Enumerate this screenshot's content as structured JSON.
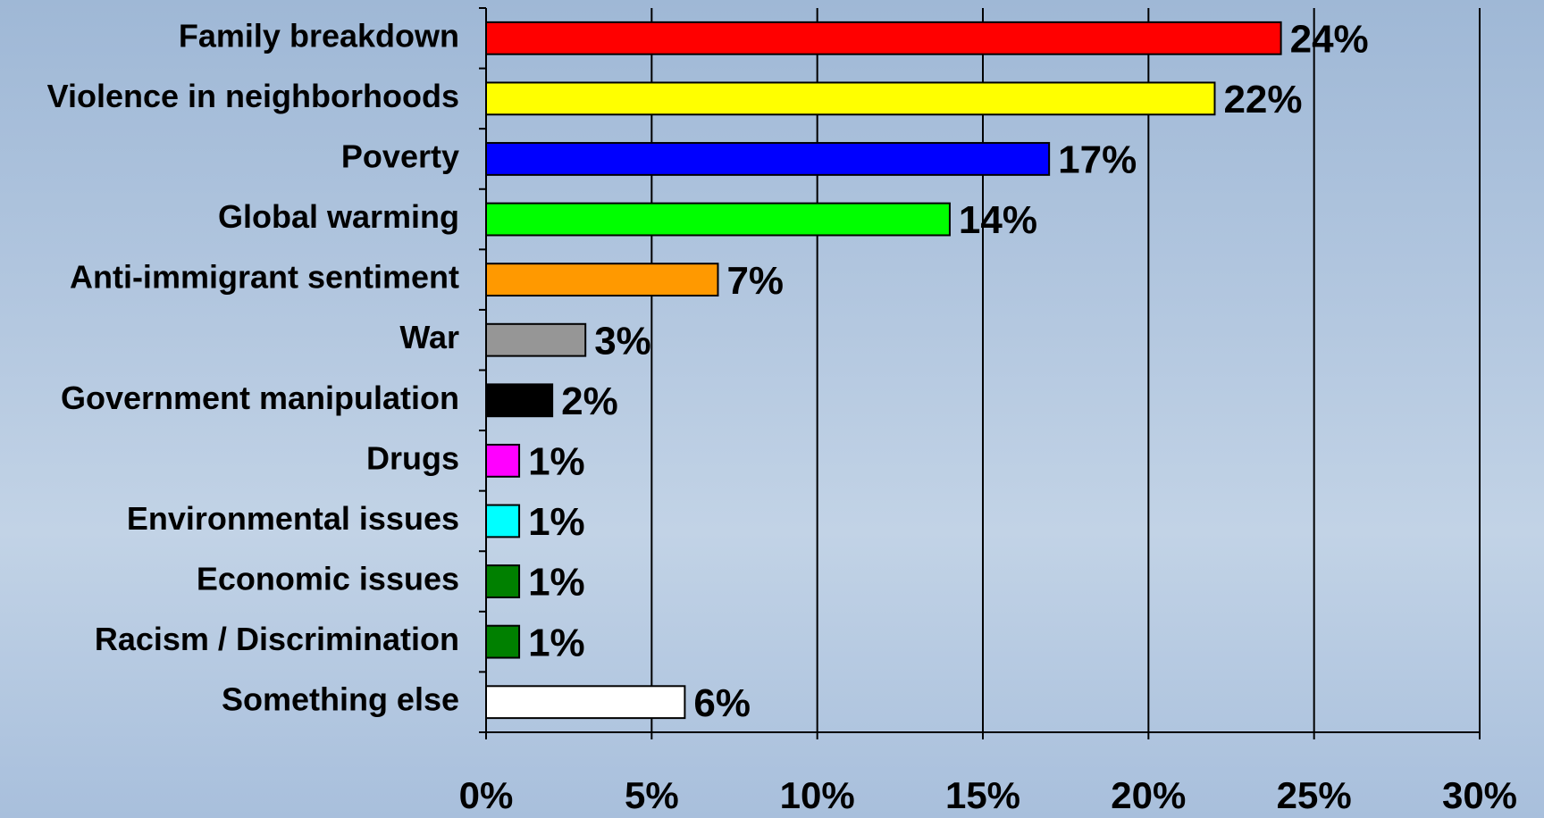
{
  "chart_data": {
    "type": "bar",
    "orientation": "horizontal",
    "categories": [
      "Family breakdown",
      "Violence in neighborhoods",
      "Poverty",
      "Global warming",
      "Anti-immigrant sentiment",
      "War",
      "Government manipulation",
      "Drugs",
      "Environmental issues",
      "Economic issues",
      "Racism / Discrimination",
      "Something else"
    ],
    "values": [
      24,
      22,
      17,
      14,
      7,
      3,
      2,
      1,
      1,
      1,
      1,
      6
    ],
    "value_labels": [
      "24%",
      "22%",
      "17%",
      "14%",
      "7%",
      "3%",
      "2%",
      "1%",
      "1%",
      "1%",
      "1%",
      "6%"
    ],
    "colors": [
      "#ff0000",
      "#ffff00",
      "#0000ff",
      "#00ff00",
      "#ff9900",
      "#969696",
      "#000000",
      "#ff00ff",
      "#00ffff",
      "#008000",
      "#008000",
      "#ffffff"
    ],
    "xlim": [
      0,
      30
    ],
    "xticks": [
      {
        "value": 0,
        "label": "0%"
      },
      {
        "value": 5,
        "label": "5%"
      },
      {
        "value": 10,
        "label": "10%"
      },
      {
        "value": 15,
        "label": "15%"
      },
      {
        "value": 20,
        "label": "20%"
      },
      {
        "value": 25,
        "label": "25%"
      },
      {
        "value": 30,
        "label": "30%"
      }
    ],
    "grid": true
  }
}
